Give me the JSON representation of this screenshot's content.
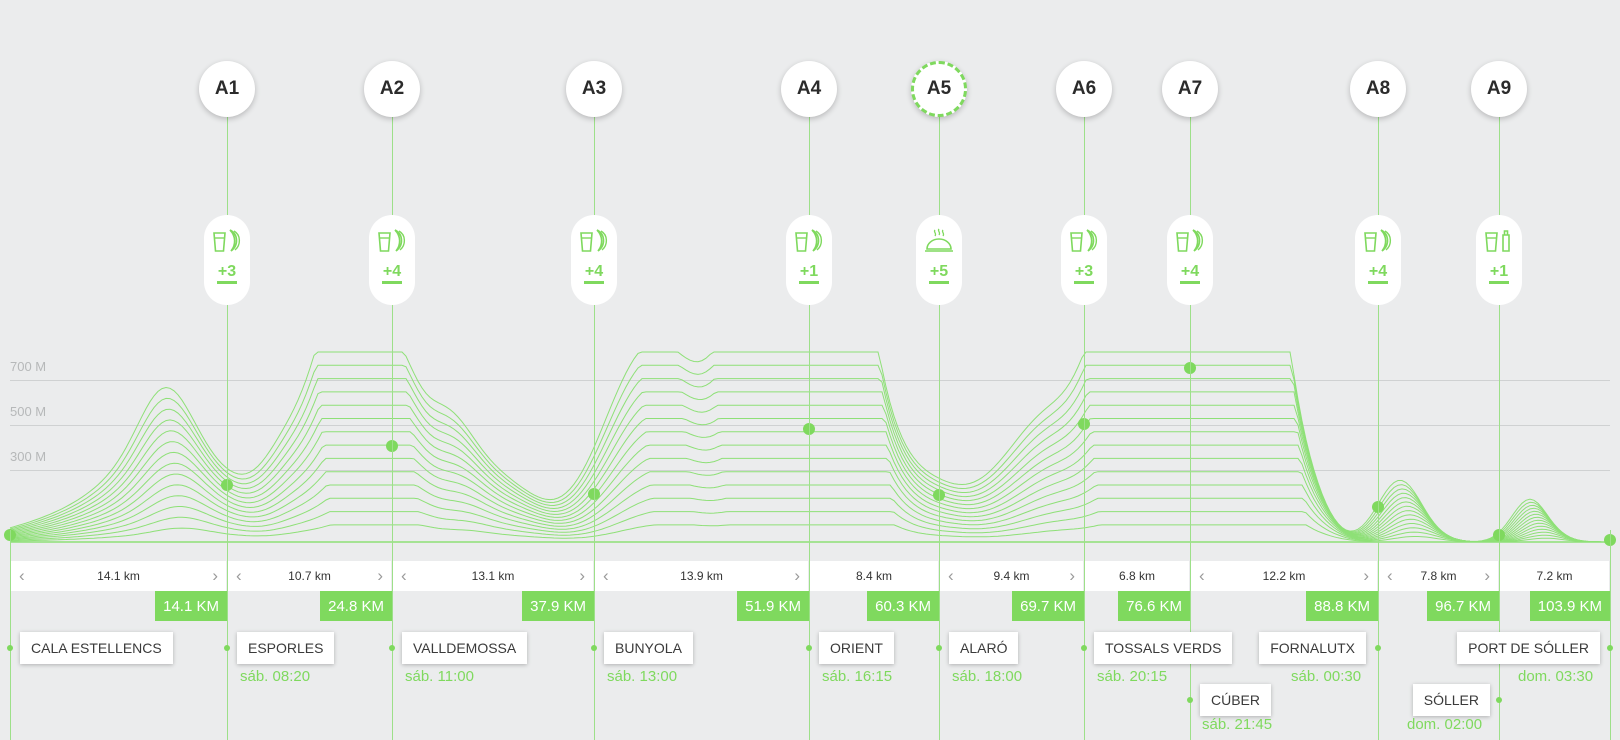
{
  "colors": {
    "accent": "#7fd95e",
    "background": "#ebeced",
    "line": "#9de089"
  },
  "aid_stations": [
    {
      "label": "A1",
      "count": "+3",
      "icon": "drink-food-icon",
      "active": false
    },
    {
      "label": "A2",
      "count": "+4",
      "icon": "drink-food-icon",
      "active": false
    },
    {
      "label": "A3",
      "count": "+4",
      "icon": "drink-food-icon",
      "active": false
    },
    {
      "label": "A4",
      "count": "+1",
      "icon": "drink-food-icon",
      "active": false
    },
    {
      "label": "A5",
      "count": "+5",
      "icon": "hot-meal-icon",
      "active": true
    },
    {
      "label": "A6",
      "count": "+3",
      "icon": "drink-food-icon",
      "active": false
    },
    {
      "label": "A7",
      "count": "+4",
      "icon": "drink-food-icon",
      "active": false
    },
    {
      "label": "A8",
      "count": "+4",
      "icon": "drink-food-icon",
      "active": false
    },
    {
      "label": "A9",
      "count": "+1",
      "icon": "drink-bottle-icon",
      "active": false
    }
  ],
  "altitude_labels": [
    "700 M",
    "500 M",
    "300 M"
  ],
  "segments": [
    {
      "distance": "14.1 km",
      "total": "14.1 KM",
      "left_arrow": true,
      "right_arrow": true
    },
    {
      "distance": "10.7 km",
      "total": "24.8 KM",
      "left_arrow": true,
      "right_arrow": true
    },
    {
      "distance": "13.1 km",
      "total": "37.9 KM",
      "left_arrow": true,
      "right_arrow": true
    },
    {
      "distance": "13.9 km",
      "total": "51.9 KM",
      "left_arrow": true,
      "right_arrow": true
    },
    {
      "distance": "8.4 km",
      "total": "60.3 KM",
      "left_arrow": false,
      "right_arrow": false
    },
    {
      "distance": "9.4 km",
      "total": "69.7 KM",
      "left_arrow": true,
      "right_arrow": true
    },
    {
      "distance": "6.8 km",
      "total": "76.6 KM",
      "left_arrow": false,
      "right_arrow": false
    },
    {
      "distance": "12.2 km",
      "total": "88.8 KM",
      "left_arrow": true,
      "right_arrow": true
    },
    {
      "distance": "7.8 km",
      "total": "96.7 KM",
      "left_arrow": true,
      "right_arrow": true
    },
    {
      "distance": "7.2 km",
      "total": "103.9 KM",
      "left_arrow": false,
      "right_arrow": false
    }
  ],
  "places": [
    {
      "name": "CALA ESTELLENCS",
      "time": ""
    },
    {
      "name": "ESPORLES",
      "time": "sáb. 08:20"
    },
    {
      "name": "VALLDEMOSSA",
      "time": "sáb. 11:00"
    },
    {
      "name": "BUNYOLA",
      "time": "sáb. 13:00"
    },
    {
      "name": "ORIENT",
      "time": "sáb. 16:15"
    },
    {
      "name": "ALARÓ",
      "time": "sáb. 18:00"
    },
    {
      "name": "TOSSALS VERDS",
      "time": "sáb. 20:15"
    },
    {
      "name": "CÚBER",
      "time": "sáb. 21:45"
    },
    {
      "name": "FORNALUTX",
      "time": "sáb. 00:30"
    },
    {
      "name": "SÓLLER",
      "time": "dom. 02:00"
    },
    {
      "name": "PORT DE SÓLLER",
      "time": "dom. 03:30"
    }
  ]
}
